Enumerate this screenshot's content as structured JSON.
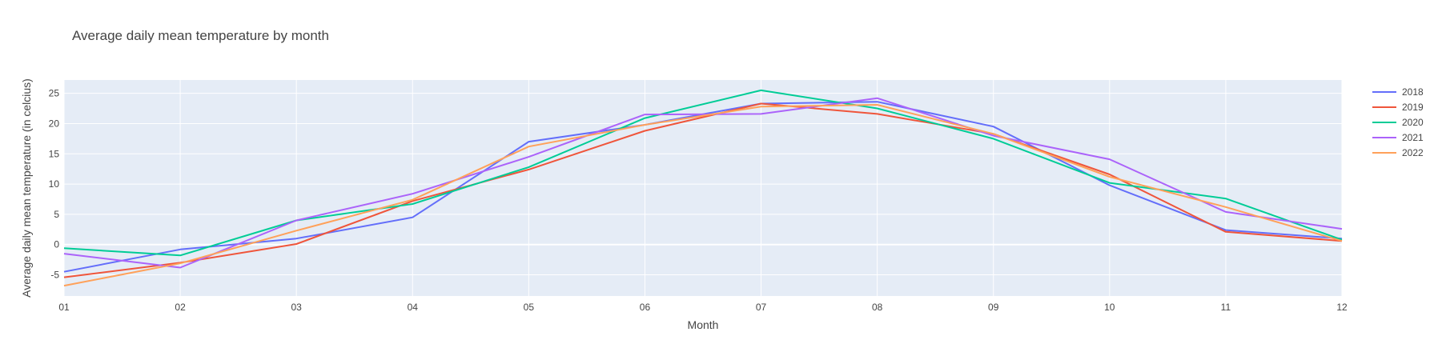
{
  "chart_data": {
    "type": "line",
    "title": "Average daily mean temperature by month",
    "xlabel": "Month",
    "ylabel": "Average daily mean temperature (in celcius)",
    "x": [
      "01",
      "02",
      "03",
      "04",
      "05",
      "06",
      "07",
      "08",
      "09",
      "10",
      "11",
      "12"
    ],
    "yticks": [
      -5,
      0,
      5,
      10,
      15,
      20,
      25
    ],
    "ylim": [
      -8.5,
      27.2
    ],
    "grid": true,
    "legend_position": "top-right",
    "series": [
      {
        "name": "2018",
        "color": "#636efa",
        "values": [
          -4.5,
          -0.8,
          1.0,
          4.5,
          17.0,
          19.8,
          23.3,
          23.6,
          19.5,
          9.8,
          2.4,
          1.0
        ]
      },
      {
        "name": "2019",
        "color": "#ef553b",
        "values": [
          -5.4,
          -3.0,
          0.1,
          7.2,
          12.4,
          18.8,
          23.3,
          21.6,
          18.3,
          11.6,
          2.1,
          0.6
        ]
      },
      {
        "name": "2020",
        "color": "#00cc96",
        "values": [
          -0.6,
          -1.8,
          4.0,
          6.7,
          12.8,
          20.9,
          25.5,
          22.5,
          17.5,
          10.2,
          7.6,
          0.8
        ]
      },
      {
        "name": "2021",
        "color": "#ab63fa",
        "values": [
          -1.5,
          -3.8,
          4.0,
          8.4,
          14.5,
          21.5,
          21.6,
          24.2,
          18.0,
          14.1,
          5.4,
          2.6
        ]
      },
      {
        "name": "2022",
        "color": "#ffa15a",
        "values": [
          -6.8,
          -3.1,
          2.3,
          7.4,
          16.2,
          19.8,
          22.8,
          23.1,
          18.3,
          11.2,
          6.2,
          0.6
        ]
      }
    ]
  }
}
